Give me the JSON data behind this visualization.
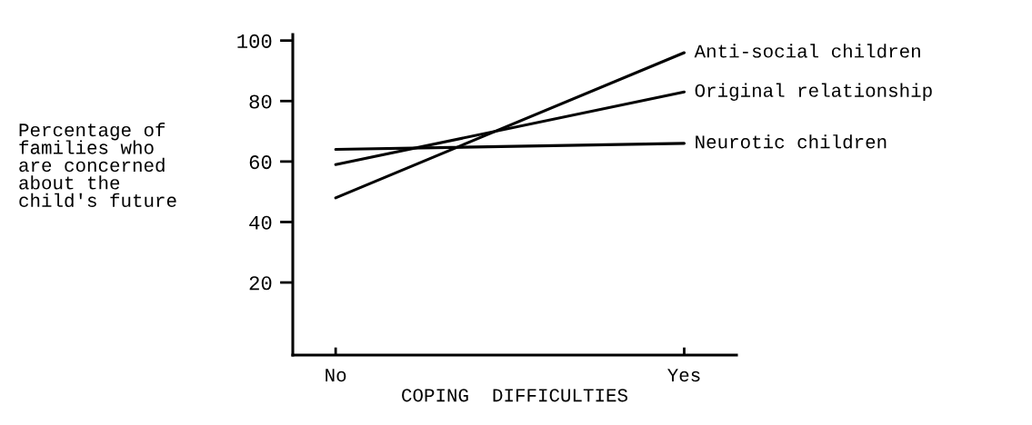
{
  "chart_data": {
    "type": "line",
    "xlabel": "COPING  DIFFICULTIES",
    "ylabel": "Percentage of\nfamilies who\nare concerned\nabout the\nchild's future",
    "categories": [
      "No",
      "Yes"
    ],
    "series": [
      {
        "name": "Anti-social children",
        "color": "#000000",
        "values": [
          48,
          96
        ]
      },
      {
        "name": "Original relationship",
        "color": "#000000",
        "values": [
          59,
          83
        ]
      },
      {
        "name": "Neurotic children",
        "color": "#000000",
        "values": [
          64,
          66
        ]
      }
    ],
    "ylim": [
      -4,
      102
    ],
    "yticks": [
      20,
      40,
      60,
      80,
      100
    ],
    "grid": false,
    "legend": false,
    "marker": "none",
    "line_style": "solid"
  }
}
